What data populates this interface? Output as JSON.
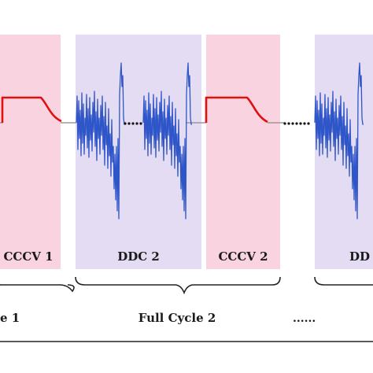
{
  "colors": {
    "cccv_band": "#f9d3df",
    "ddc_band": "#e3dcf2",
    "cccv_signal": "#e01010",
    "ddc_signal": "#2f56c8",
    "rest_line": "#9a9a9a",
    "dots": "#111111",
    "frame": "#222222"
  },
  "phases": [
    {
      "label": "CCCV 1",
      "type": "cccv"
    },
    {
      "label": "DDC 2",
      "type": "ddc"
    },
    {
      "label": "CCCV 2",
      "type": "cccv"
    },
    {
      "label": "DD",
      "type": "ddc"
    }
  ],
  "cycles": [
    {
      "label": "e 1"
    },
    {
      "label": "Full Cycle 2"
    },
    {
      "label": "......"
    }
  ]
}
